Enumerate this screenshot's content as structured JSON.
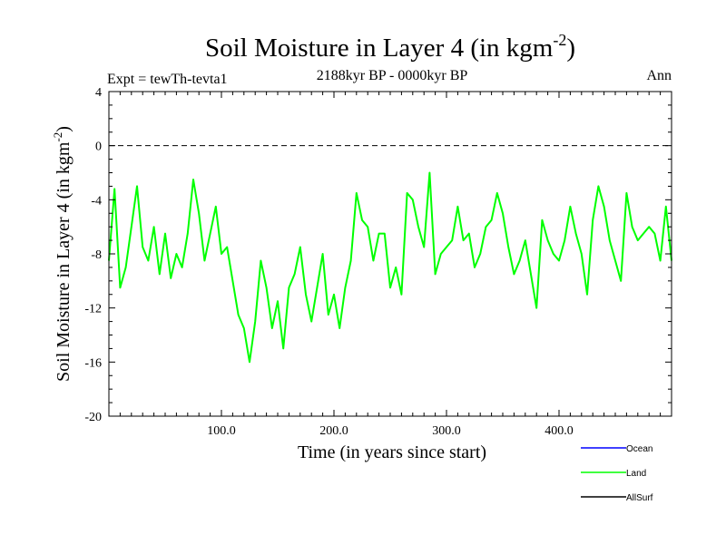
{
  "chart_data": {
    "type": "line",
    "title": "Soil Moisture in Layer 4 (in kgm",
    "title_sup": "-2",
    "title_close": ")",
    "subtitle": "2188kyr BP - 0000kyr BP",
    "expt_label": "Expt = tewTh-tevta1",
    "season_label": "Ann",
    "xlabel": "Time (in years since start)",
    "ylabel": "Soil Moisture in Layer 4 (in kgm",
    "ylabel_sup": "-2",
    "ylabel_close": ")",
    "xlim": [
      0,
      500
    ],
    "ylim": [
      -20,
      4
    ],
    "x_ticks": [
      100,
      200,
      300,
      400
    ],
    "x_tick_labels": [
      "100.0",
      "200.0",
      "300.0",
      "400.0"
    ],
    "y_ticks": [
      4,
      0,
      -4,
      -8,
      -12,
      -16,
      -20
    ],
    "y_tick_labels": [
      "4",
      "0",
      "-4",
      "-8",
      "-12",
      "-16",
      "-20"
    ],
    "reference_line": 0,
    "legend": [
      {
        "name": "Ocean",
        "color": "#0000ff"
      },
      {
        "name": "Land",
        "color": "#00ff00"
      },
      {
        "name": "AllSurf",
        "color": "#000000"
      }
    ],
    "series": [
      {
        "name": "Land",
        "color": "#00ff00",
        "x": [
          0,
          5,
          10,
          15,
          20,
          25,
          30,
          35,
          40,
          45,
          50,
          55,
          60,
          65,
          70,
          75,
          80,
          85,
          90,
          95,
          100,
          105,
          110,
          115,
          120,
          125,
          130,
          135,
          140,
          145,
          150,
          155,
          160,
          165,
          170,
          175,
          180,
          185,
          190,
          195,
          200,
          205,
          210,
          215,
          220,
          225,
          230,
          235,
          240,
          245,
          250,
          255,
          260,
          265,
          270,
          275,
          280,
          285,
          290,
          295,
          300,
          305,
          310,
          315,
          320,
          325,
          330,
          335,
          340,
          345,
          350,
          355,
          360,
          365,
          370,
          375,
          380,
          385,
          390,
          395,
          400,
          405,
          410,
          415,
          420,
          425,
          430,
          435,
          440,
          445,
          450,
          455,
          460,
          465,
          470,
          475,
          480,
          485,
          490,
          495,
          500
        ],
        "values": [
          -8.5,
          -3.2,
          -10.5,
          -9.0,
          -6.0,
          -3.0,
          -7.5,
          -8.5,
          -6.0,
          -9.5,
          -6.5,
          -9.8,
          -8.0,
          -9.0,
          -6.5,
          -2.5,
          -5.0,
          -8.5,
          -6.5,
          -4.5,
          -8.0,
          -7.5,
          -10.0,
          -12.5,
          -13.5,
          -16.0,
          -13.0,
          -8.5,
          -10.5,
          -13.5,
          -11.5,
          -15.0,
          -10.5,
          -9.5,
          -7.5,
          -11.0,
          -13.0,
          -10.5,
          -8.0,
          -12.5,
          -11.0,
          -13.5,
          -10.5,
          -8.5,
          -3.5,
          -5.5,
          -6.0,
          -8.5,
          -6.5,
          -6.5,
          -10.5,
          -9.0,
          -11.0,
          -3.5,
          -4.0,
          -6.0,
          -7.5,
          -2.0,
          -9.5,
          -8.0,
          -7.5,
          -7.0,
          -4.5,
          -7.0,
          -6.5,
          -9.0,
          -8.0,
          -6.0,
          -5.5,
          -3.5,
          -5.0,
          -7.5,
          -9.5,
          -8.5,
          -7.0,
          -9.5,
          -12.0,
          -5.5,
          -7.0,
          -8.0,
          -8.5,
          -7.0,
          -4.5,
          -6.5,
          -8.0,
          -11.0,
          -5.5,
          -3.0,
          -4.5,
          -7.0,
          -8.5,
          -10.0,
          -3.5,
          -6.0,
          -7.0,
          -6.5,
          -6.0,
          -6.5,
          -8.5,
          -4.5,
          -8.5
        ]
      }
    ]
  }
}
